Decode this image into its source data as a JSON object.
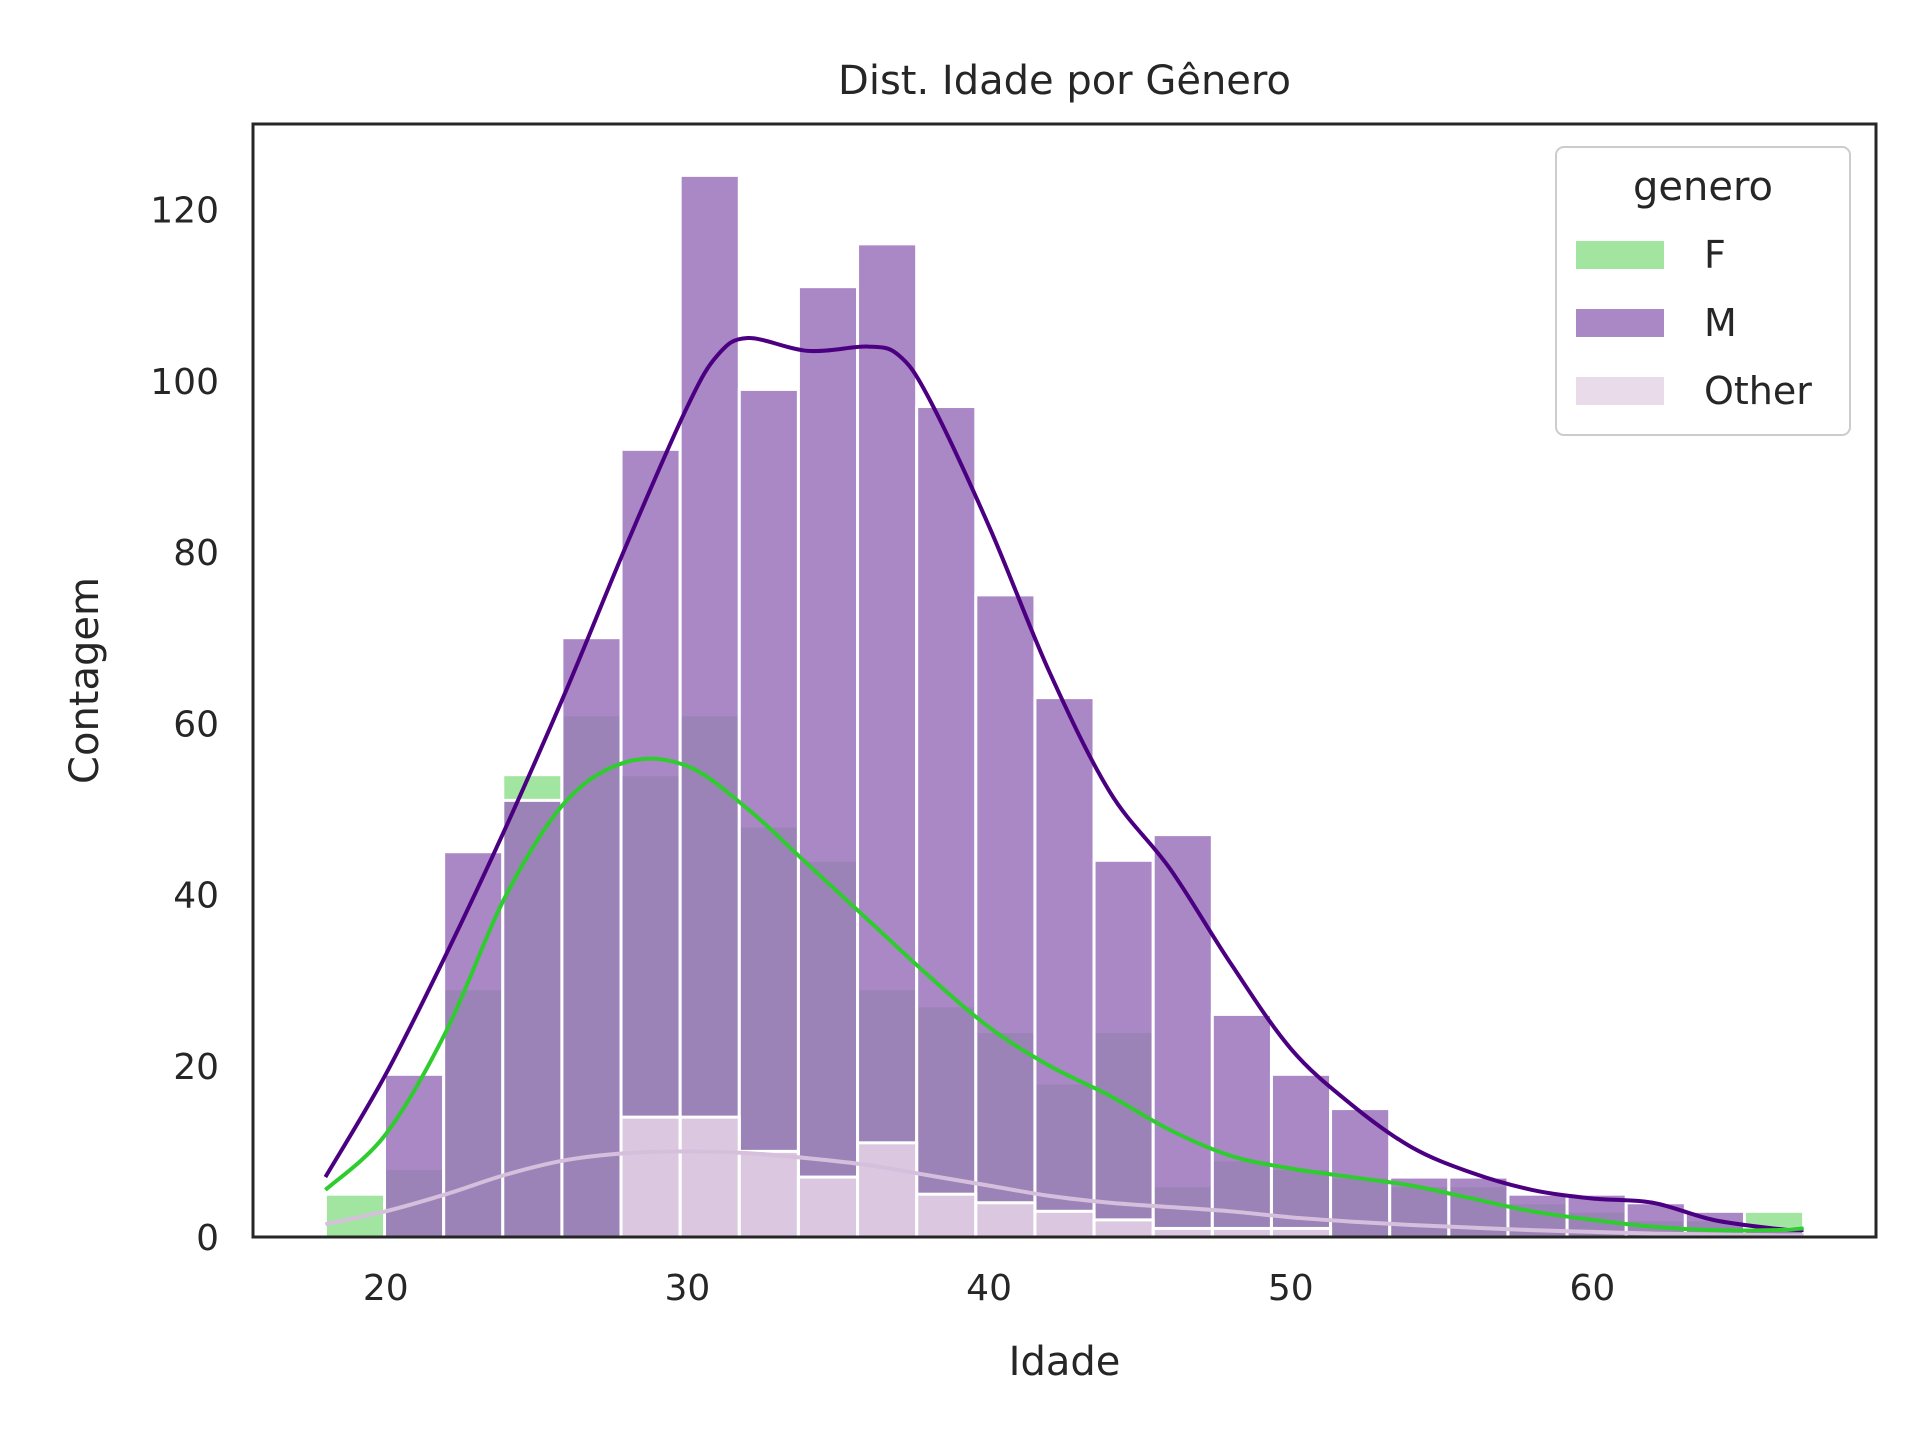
{
  "chart_data": {
    "type": "histogram",
    "title": "Dist. Idade por Gênero",
    "xlabel": "Idade",
    "ylabel": "Contagem",
    "xlim": [
      15.6,
      69.4
    ],
    "ylim": [
      0,
      130
    ],
    "xticks": [
      20,
      30,
      40,
      50,
      60
    ],
    "yticks": [
      0,
      20,
      40,
      60,
      80,
      100,
      120
    ],
    "grid": false,
    "legend": {
      "title": "genero",
      "placement": "top-right"
    },
    "bin_start": 18,
    "bin_width": 1.96,
    "series": [
      {
        "name": "F",
        "color": "#90e090",
        "kde_color": "#2ecc2e",
        "values": [
          5,
          8,
          29,
          54,
          61,
          54,
          61,
          48,
          44,
          29,
          27,
          24,
          18,
          24,
          6,
          9,
          8,
          7,
          6,
          6,
          4,
          3,
          2,
          2,
          3
        ],
        "kde": [
          [
            18,
            5.5
          ],
          [
            20,
            12
          ],
          [
            22,
            24
          ],
          [
            24,
            40
          ],
          [
            26,
            51
          ],
          [
            28,
            55.5
          ],
          [
            30,
            55
          ],
          [
            32,
            50
          ],
          [
            34,
            43.5
          ],
          [
            36,
            37
          ],
          [
            38,
            30.5
          ],
          [
            40,
            24.5
          ],
          [
            42,
            20
          ],
          [
            44,
            16.5
          ],
          [
            46,
            12.5
          ],
          [
            48,
            9.5
          ],
          [
            50,
            8
          ],
          [
            52,
            7
          ],
          [
            54,
            6
          ],
          [
            56,
            4.5
          ],
          [
            58,
            3
          ],
          [
            60,
            2
          ],
          [
            62,
            1.2
          ],
          [
            64,
            0.8
          ],
          [
            66,
            0.8
          ],
          [
            67,
            1
          ]
        ]
      },
      {
        "name": "M",
        "color": "#9b72bb",
        "kde_color": "#4b0082",
        "values": [
          0,
          19,
          45,
          51,
          70,
          92,
          124,
          99,
          111,
          116,
          97,
          75,
          63,
          44,
          47,
          26,
          19,
          15,
          7,
          7,
          5,
          5,
          4,
          3,
          1
        ],
        "kde": [
          [
            18,
            7
          ],
          [
            20,
            19
          ],
          [
            22,
            33
          ],
          [
            24,
            48
          ],
          [
            26,
            64
          ],
          [
            28,
            81
          ],
          [
            30,
            97
          ],
          [
            31,
            103
          ],
          [
            32,
            105
          ],
          [
            34,
            103.5
          ],
          [
            36,
            104
          ],
          [
            37,
            103
          ],
          [
            38,
            98
          ],
          [
            40,
            83
          ],
          [
            42,
            66
          ],
          [
            44,
            52
          ],
          [
            46,
            43
          ],
          [
            48,
            32
          ],
          [
            50,
            22
          ],
          [
            52,
            15.5
          ],
          [
            54,
            10.5
          ],
          [
            56,
            7.5
          ],
          [
            58,
            5.5
          ],
          [
            60,
            4.5
          ],
          [
            62,
            4
          ],
          [
            64,
            2
          ],
          [
            66,
            1
          ],
          [
            67,
            0.8
          ]
        ]
      },
      {
        "name": "Other",
        "color": "#e6d5e8",
        "kde_color": "#d6bfdc",
        "values": [
          0,
          0,
          0,
          0,
          0,
          14,
          14,
          10,
          7,
          11,
          5,
          4,
          3,
          2,
          1,
          1,
          1,
          0,
          0,
          0,
          0,
          0,
          0,
          0,
          0
        ],
        "kde": [
          [
            18,
            1.5
          ],
          [
            20,
            3
          ],
          [
            22,
            5
          ],
          [
            24,
            7.3
          ],
          [
            26,
            9
          ],
          [
            28,
            9.8
          ],
          [
            30,
            10
          ],
          [
            32,
            9.8
          ],
          [
            34,
            9.2
          ],
          [
            36,
            8.4
          ],
          [
            38,
            7.2
          ],
          [
            40,
            6
          ],
          [
            42,
            4.8
          ],
          [
            44,
            4
          ],
          [
            46,
            3.5
          ],
          [
            48,
            3
          ],
          [
            50,
            2.3
          ],
          [
            52,
            1.8
          ],
          [
            54,
            1.4
          ],
          [
            56,
            1.1
          ],
          [
            58,
            0.8
          ],
          [
            60,
            0.6
          ],
          [
            62,
            0.4
          ],
          [
            64,
            0.3
          ],
          [
            66,
            0.2
          ],
          [
            67,
            0.2
          ]
        ]
      }
    ]
  }
}
